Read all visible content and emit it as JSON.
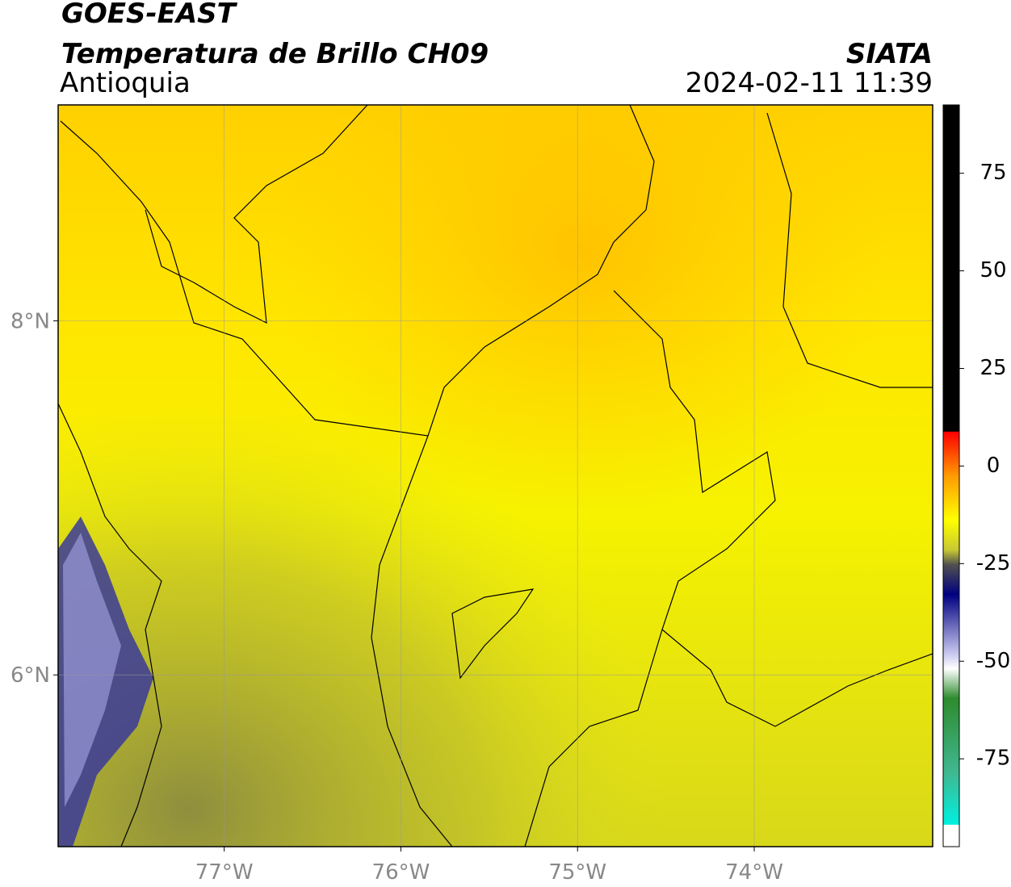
{
  "header": {
    "satellite": "GOES-EAST",
    "product": "Temperatura de Brillo CH09",
    "region": "Antioquia",
    "source": "SIATA",
    "datetime": "2024-02-11 11:39"
  },
  "map": {
    "xlim": [
      -77.94,
      -72.99
    ],
    "ylim": [
      5.03,
      9.22
    ],
    "xticks": [
      {
        "value": -77,
        "label": "77°W"
      },
      {
        "value": -76,
        "label": "76°W"
      },
      {
        "value": -75,
        "label": "75°W"
      },
      {
        "value": -74,
        "label": "74°W"
      }
    ],
    "yticks": [
      {
        "value": 6,
        "label": "6°N"
      },
      {
        "value": 8,
        "label": "8°N"
      }
    ]
  },
  "colorbar": {
    "lim": [
      -97.5,
      92.5
    ],
    "ticks": [
      -75,
      -50,
      -25,
      0,
      25,
      50,
      75
    ]
  }
}
